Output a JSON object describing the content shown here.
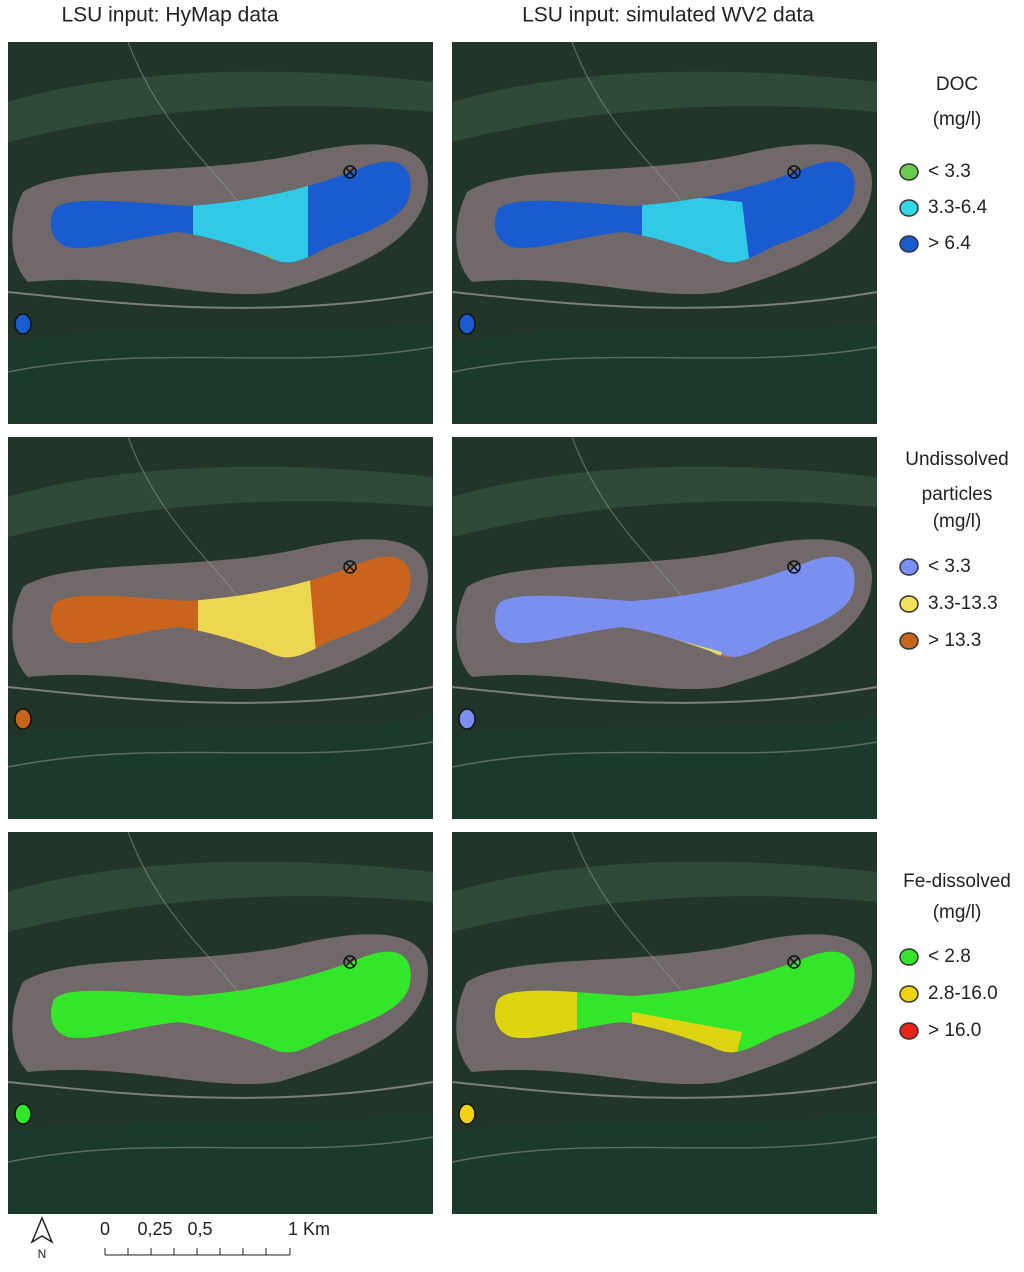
{
  "columns": [
    "LSU input: HyMap data",
    "LSU input: simulated WV2 data"
  ],
  "legends": [
    {
      "title": [
        "DOC",
        "(mg/l)"
      ],
      "items": [
        {
          "label": "< 3.3",
          "color": "#6cc94f"
        },
        {
          "label": "3.3-6.4",
          "color": "#33d6e8"
        },
        {
          "label": "> 6.4",
          "color": "#1a5ccf"
        }
      ]
    },
    {
      "title": [
        "Undissolved",
        "particles",
        "(mg/l)"
      ],
      "items": [
        {
          "label": "< 3.3",
          "color": "#7b8ff0"
        },
        {
          "label": "3.3-13.3",
          "color": "#f0e35a"
        },
        {
          "label": "> 13.3",
          "color": "#c9641c"
        }
      ]
    },
    {
      "title": [
        "Fe-dissolved",
        "(mg/l)"
      ],
      "items": [
        {
          "label": "< 2.8",
          "color": "#33e62a"
        },
        {
          "label": "2.8-16.0",
          "color": "#f2d20f"
        },
        {
          "label": "> 16.0",
          "color": "#e8231a"
        }
      ]
    }
  ],
  "scale_bar": {
    "labels": [
      "0",
      "0,25",
      "0,5",
      "1 Km"
    ]
  },
  "north_arrow": "N"
}
